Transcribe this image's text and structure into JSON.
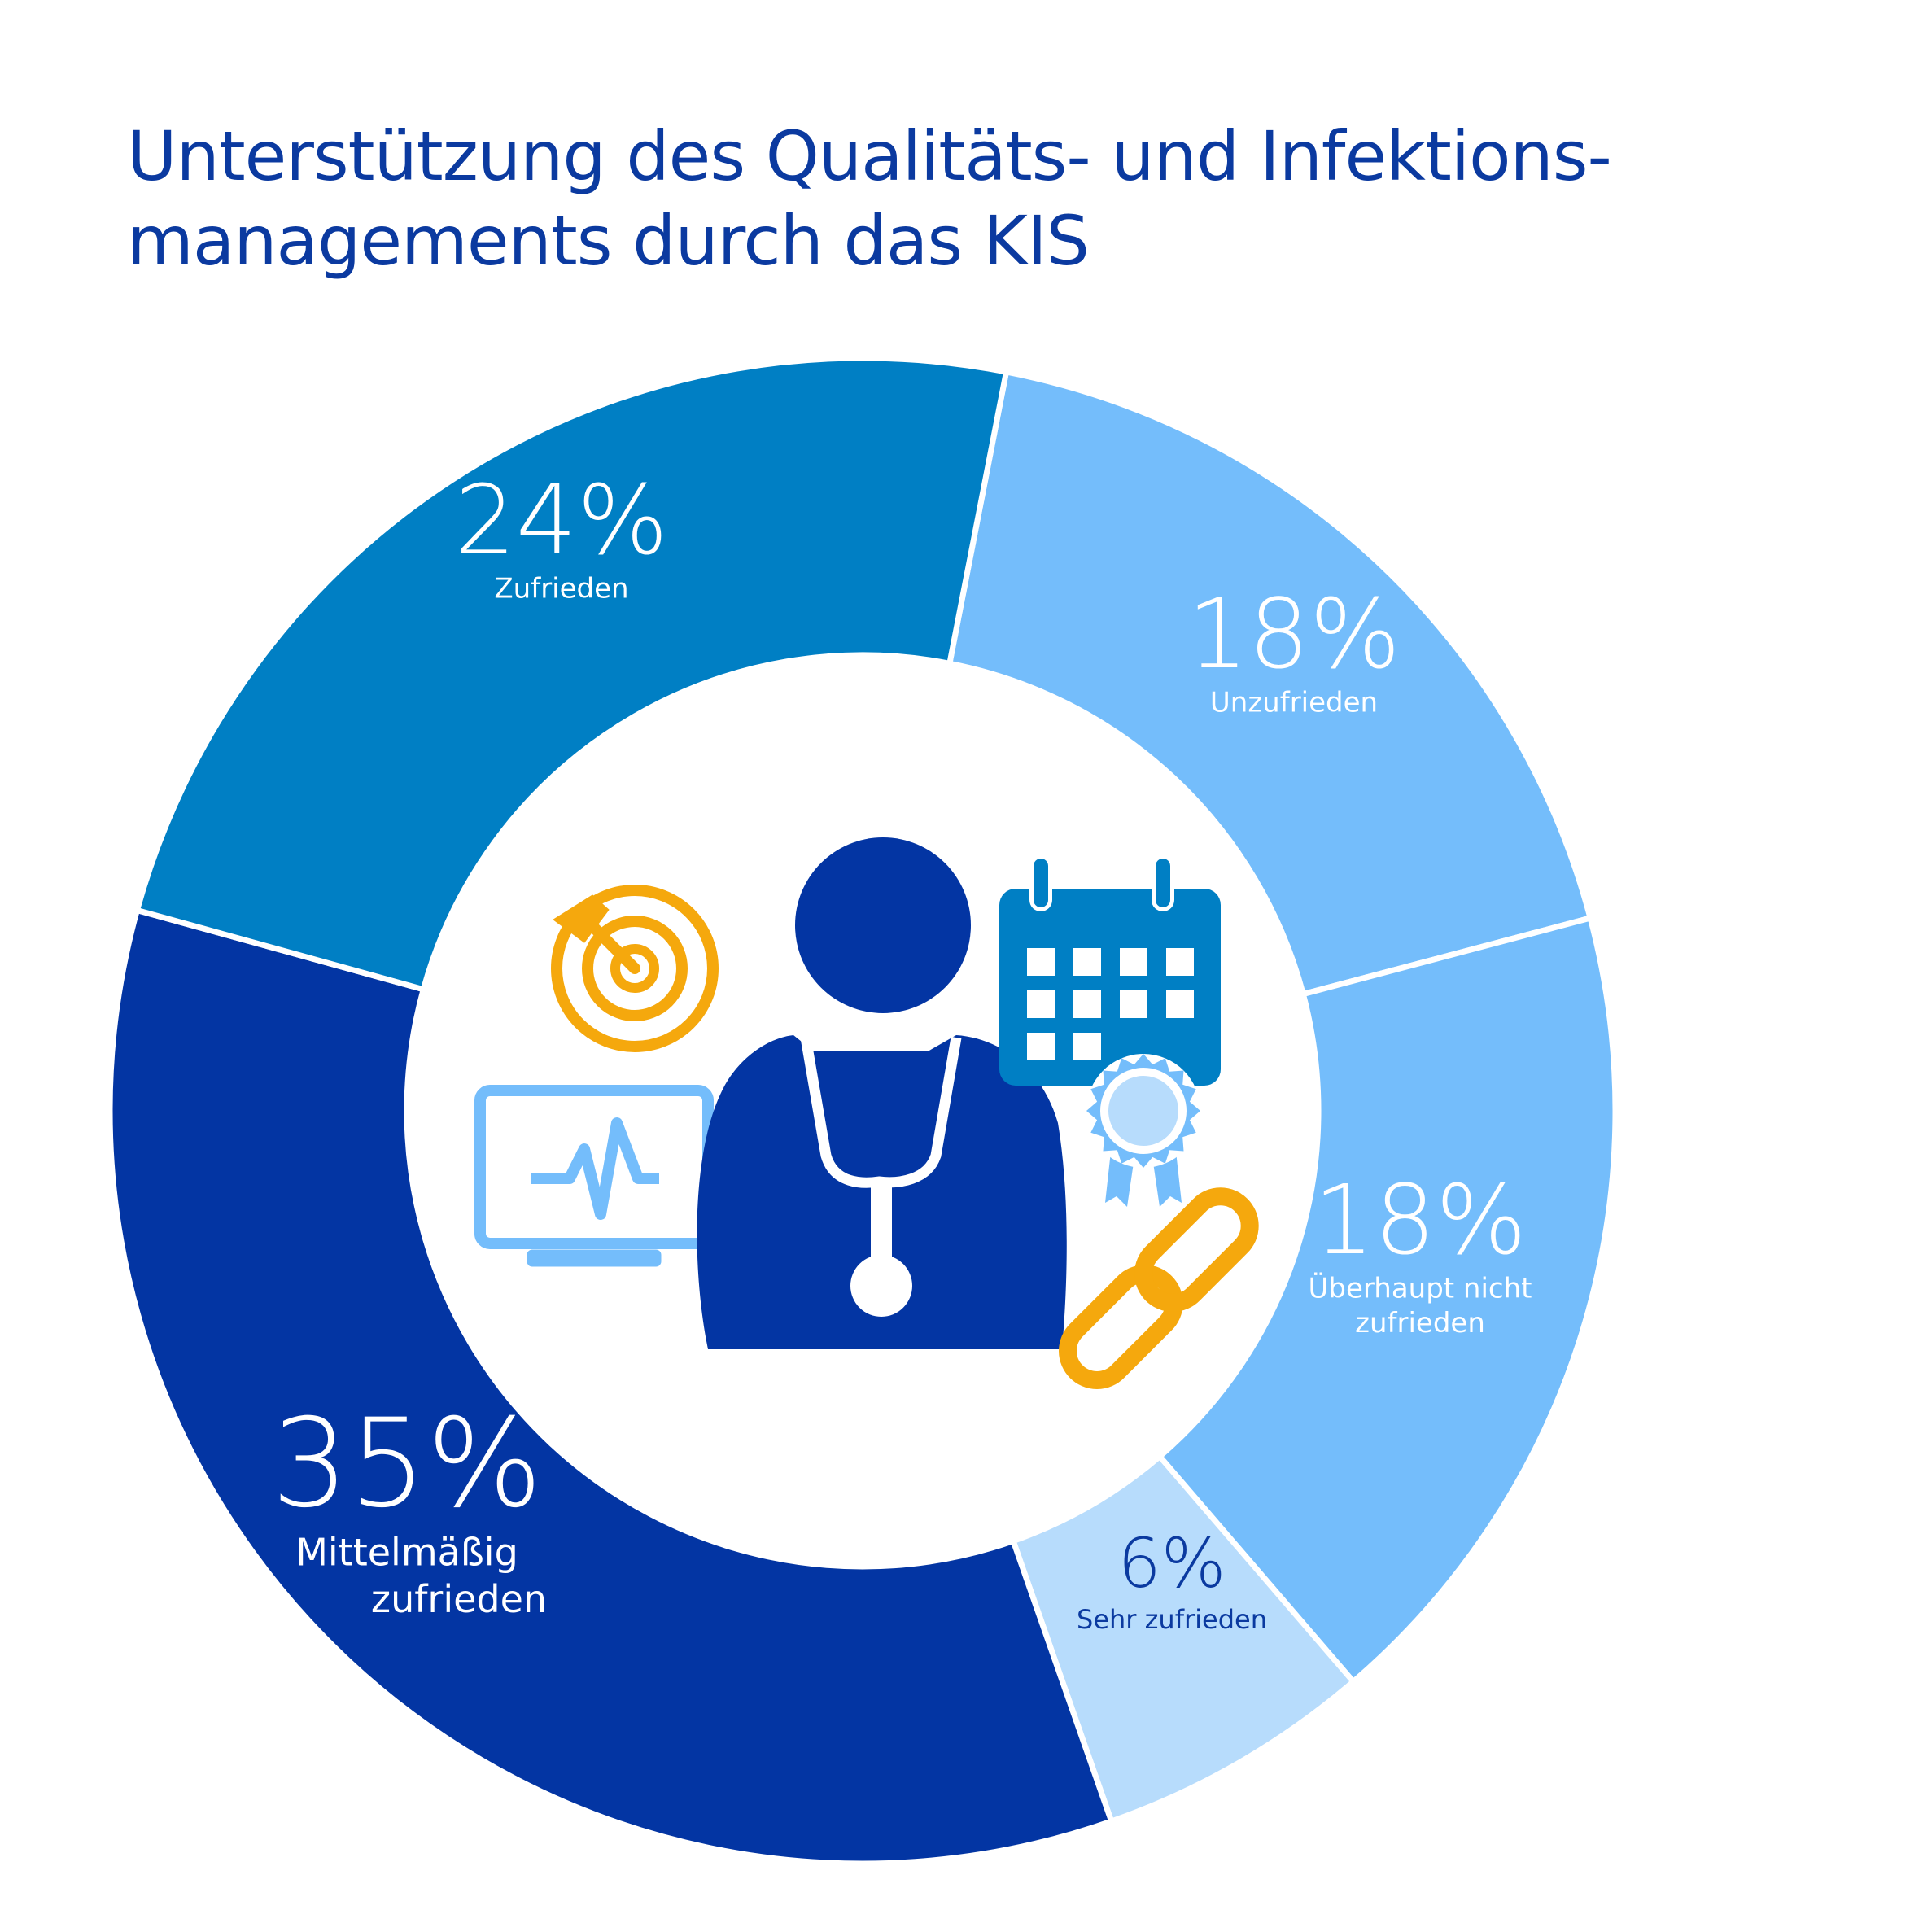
{
  "title": {
    "line1": "Unterstützung des Qualitäts- und Infektions-",
    "line2": "managements durch das KIS"
  },
  "chart_data": {
    "type": "pie",
    "variant": "donut",
    "title": "Unterstützung des Qualitäts- und Infektionsmanagements durch das KIS",
    "slices": [
      {
        "label": "Unzufrieden",
        "label_lines": [
          "Unzufrieden"
        ],
        "value": 18,
        "display": "18%",
        "color": "#74bdfb",
        "text_color": "#ffffff"
      },
      {
        "label": "Überhaupt nicht zufrieden",
        "label_lines": [
          "Überhaupt nicht",
          "zufrieden"
        ],
        "value": 18,
        "display": "18%",
        "color": "#74bdfb",
        "text_color": "#ffffff"
      },
      {
        "label": "Sehr zufrieden",
        "label_lines": [
          "Sehr zufrieden"
        ],
        "value": 6,
        "display": "6%",
        "color": "#b7dcfc",
        "text_color": "#0b3aa0"
      },
      {
        "label": "Mittelmäßig zufrieden",
        "label_lines": [
          "Mittelmäßig",
          "zufrieden"
        ],
        "value": 35,
        "display": "35%",
        "color": "#0335a3",
        "text_color": "#ffffff"
      },
      {
        "label": "Zufrieden",
        "label_lines": [
          "Zufrieden"
        ],
        "value": 24,
        "display": "24%",
        "color": "#007fc4",
        "text_color": "#ffffff"
      }
    ]
  },
  "icons": {
    "target": {
      "name": "target-icon",
      "color": "#f5a80d"
    },
    "monitor": {
      "name": "heart-monitor-icon",
      "color": "#74bdfb"
    },
    "doctor": {
      "name": "doctor-icon",
      "color": "#0335a3"
    },
    "calendar": {
      "name": "calendar-icon",
      "color": "#007fc4"
    },
    "award": {
      "name": "award-rosette-icon",
      "color": "#74bdfb"
    },
    "link": {
      "name": "chain-link-icon",
      "color": "#f5a80d"
    }
  }
}
